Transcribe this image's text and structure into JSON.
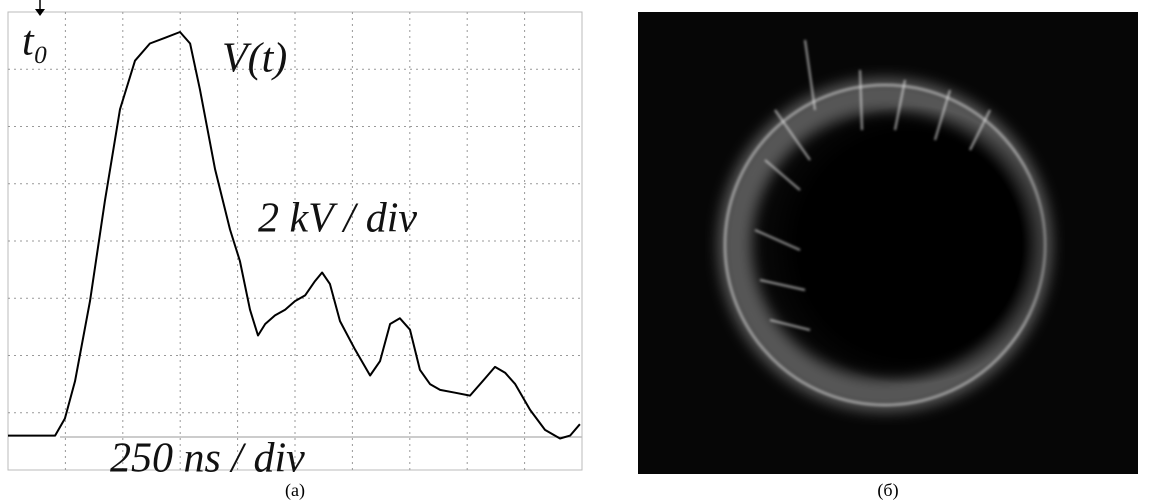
{
  "chart_data": {
    "type": "line",
    "x": [
      0,
      205,
      248,
      292,
      357,
      422,
      488,
      553,
      618,
      684,
      749,
      793,
      836,
      902,
      967,
      1010,
      1054,
      1089,
      1120,
      1163,
      1207,
      1250,
      1294,
      1337,
      1368,
      1402,
      1446,
      1512,
      1577,
      1620,
      1664,
      1707,
      1751,
      1794,
      1838,
      1882,
      1947,
      2012,
      2078,
      2121,
      2165,
      2209,
      2274,
      2339,
      2404,
      2448,
      2491
    ],
    "values": [
      1.2,
      1.2,
      1.8,
      3.1,
      5.9,
      9.4,
      12.6,
      14.3,
      14.9,
      15.1,
      15.3,
      14.9,
      13.3,
      10.5,
      8.4,
      7.3,
      5.6,
      4.7,
      5.1,
      5.4,
      5.6,
      5.9,
      6.1,
      6.6,
      6.9,
      6.5,
      5.2,
      4.2,
      3.3,
      3.8,
      5.1,
      5.3,
      4.9,
      3.5,
      3.0,
      2.8,
      2.7,
      2.6,
      3.2,
      3.6,
      3.4,
      3.0,
      2.1,
      1.4,
      1.1,
      1.2,
      1.6
    ],
    "color": "#000000",
    "xlim": [
      0,
      2500
    ],
    "ylim": [
      0,
      16
    ],
    "grid": true,
    "annotations": [
      "t₀",
      "V(t)",
      "2 kV / div",
      "250 ns / div"
    ]
  },
  "figure": {
    "captions": [
      "(a)",
      "(б)"
    ]
  }
}
